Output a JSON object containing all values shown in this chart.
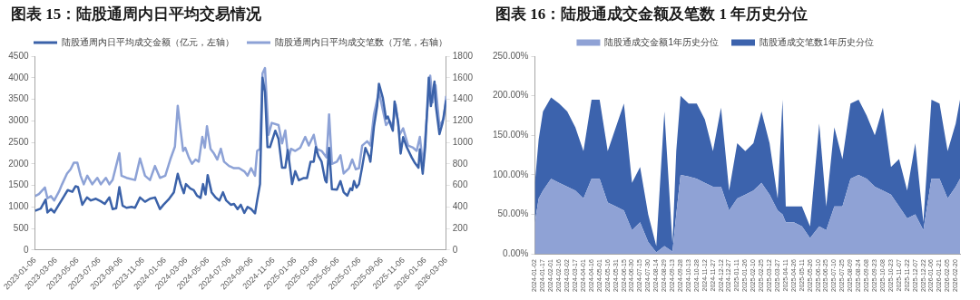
{
  "chart_data": [
    {
      "type": "line",
      "title": "图表 15：陆股通周内日平均交易情况",
      "legend": "top",
      "marker": "none",
      "xlim": [
        "2023-01-06",
        "2026-03-06"
      ],
      "xticks": [
        "2023-01-06",
        "2023-03-06",
        "2023-05-06",
        "2023-07-06",
        "2023-09-06",
        "2023-11-06",
        "2024-01-06",
        "2024-03-06",
        "2024-05-06",
        "2024-07-06",
        "2024-09-06",
        "2024-11-06",
        "2025-01-06",
        "2025-03-06",
        "2025-05-06",
        "2025-07-06",
        "2025-09-06",
        "2025-11-06",
        "2026-01-06",
        "2026-03-06"
      ],
      "ylim": [
        0,
        4500
      ],
      "yticks": [
        0,
        500,
        1000,
        1500,
        2000,
        2500,
        3000,
        3500,
        4000,
        4500
      ],
      "y2lim": [
        0,
        1800
      ],
      "y2ticks": [
        0,
        200,
        400,
        600,
        800,
        1000,
        1200,
        1400,
        1600,
        1800
      ],
      "series": [
        {
          "name": "陆股通周内日平均成交金额（亿元，左轴）",
          "color": "#3b62a9",
          "axis": "y",
          "x": [
            "2023-01-06",
            "2023-01-22",
            "2023-02-05",
            "2023-02-10",
            "2023-02-20",
            "2023-03-01",
            "2023-03-14",
            "2023-03-28",
            "2023-04-08",
            "2023-04-21",
            "2023-04-30",
            "2023-05-07",
            "2023-05-19",
            "2023-06-01",
            "2023-06-12",
            "2023-06-26",
            "2023-07-10",
            "2023-07-21",
            "2023-08-03",
            "2023-08-12",
            "2023-08-22",
            "2023-08-31",
            "2023-09-09",
            "2023-09-20",
            "2023-10-04",
            "2023-10-14",
            "2023-10-28",
            "2023-11-11",
            "2023-11-25",
            "2023-12-09",
            "2023-12-23",
            "2024-01-02",
            "2024-01-16",
            "2024-01-31",
            "2024-02-11",
            "2024-02-19",
            "2024-02-28",
            "2024-03-05",
            "2024-03-17",
            "2024-03-27",
            "2024-04-05",
            "2024-04-15",
            "2024-04-22",
            "2024-04-29",
            "2024-05-05",
            "2024-05-16",
            "2024-05-27",
            "2024-06-07",
            "2024-06-17",
            "2024-06-26",
            "2024-07-09",
            "2024-07-18",
            "2024-07-28",
            "2024-08-06",
            "2024-08-16",
            "2024-08-25",
            "2024-09-04",
            "2024-09-15",
            "2024-09-21",
            "2024-09-29",
            "2024-10-06",
            "2024-10-13",
            "2024-10-20",
            "2024-10-27",
            "2024-11-11",
            "2024-11-20",
            "2024-11-30",
            "2024-12-09",
            "2024-12-16",
            "2024-12-24",
            "2024-12-28",
            "2025-01-06",
            "2025-01-16",
            "2025-01-30",
            "2025-02-08",
            "2025-02-18",
            "2025-02-27",
            "2025-03-05",
            "2025-03-12",
            "2025-03-21",
            "2025-03-31",
            "2025-04-04",
            "2025-04-11",
            "2025-04-19",
            "2025-05-03",
            "2025-05-13",
            "2025-05-22",
            "2025-06-01",
            "2025-06-10",
            "2025-06-15",
            "2025-06-20",
            "2025-06-27",
            "2025-07-04",
            "2025-07-13",
            "2025-07-22",
            "2025-08-01",
            "2025-08-05",
            "2025-08-15",
            "2025-08-24",
            "2025-08-29",
            "2025-09-09",
            "2025-09-18",
            "2025-09-23",
            "2025-10-01",
            "2025-10-07",
            "2025-10-12",
            "2025-10-22",
            "2025-10-29",
            "2025-11-05",
            "2025-11-15",
            "2025-11-29",
            "2025-12-08",
            "2025-12-18",
            "2025-12-22",
            "2025-12-30",
            "2026-01-06",
            "2026-01-16",
            "2026-01-22",
            "2026-02-01",
            "2026-02-05",
            "2026-02-15",
            "2026-02-24",
            "2026-03-06"
          ],
          "values": [
            910,
            960,
            1170,
            870,
            950,
            870,
            1050,
            1240,
            1390,
            1350,
            1480,
            1460,
            1050,
            1220,
            1150,
            1190,
            1130,
            1070,
            1220,
            950,
            970,
            1460,
            1030,
            980,
            1000,
            980,
            1220,
            1120,
            1190,
            1220,
            950,
            1050,
            1170,
            1340,
            1770,
            1530,
            1320,
            1530,
            1430,
            1390,
            1260,
            1210,
            1530,
            1290,
            1740,
            1340,
            1220,
            1150,
            1340,
            1150,
            1050,
            1070,
            950,
            1050,
            860,
            1000,
            950,
            850,
            1150,
            1530,
            4000,
            3670,
            2390,
            2390,
            2770,
            2580,
            1910,
            1910,
            2320,
            1810,
            1530,
            1830,
            1620,
            1670,
            1670,
            2050,
            2050,
            2390,
            2180,
            2050,
            1620,
            1570,
            2370,
            1410,
            1400,
            1600,
            1340,
            1260,
            1430,
            1390,
            1600,
            1450,
            1530,
            1930,
            2370,
            2180,
            2050,
            2860,
            3340,
            3860,
            3530,
            3050,
            3100,
            2910,
            2770,
            3450,
            2960,
            2240,
            2620,
            2390,
            2150,
            2020,
            1910,
            2340,
            1770,
            2390,
            4000,
            3340,
            3910,
            3340,
            2690,
            2960,
            3480
          ]
        },
        {
          "name": "陆股通周内日平均成交笔数（万笔，右轴）",
          "color": "#8da2d6",
          "axis": "y2",
          "x": [
            "2023-01-06",
            "2023-01-17",
            "2023-02-03",
            "2023-02-10",
            "2023-02-20",
            "2023-03-01",
            "2023-03-14",
            "2023-03-23",
            "2023-04-06",
            "2023-04-16",
            "2023-04-25",
            "2023-05-05",
            "2023-05-14",
            "2023-05-23",
            "2023-06-02",
            "2023-06-16",
            "2023-06-30",
            "2023-07-10",
            "2023-07-24",
            "2023-08-03",
            "2023-08-12",
            "2023-08-31",
            "2023-09-06",
            "2023-09-20",
            "2023-10-14",
            "2023-10-28",
            "2023-11-11",
            "2023-11-25",
            "2023-12-09",
            "2023-12-23",
            "2024-01-07",
            "2024-01-21",
            "2024-02-03",
            "2024-02-11",
            "2024-02-19",
            "2024-02-26",
            "2024-03-03",
            "2024-03-13",
            "2024-03-22",
            "2024-04-01",
            "2024-04-10",
            "2024-04-20",
            "2024-04-27",
            "2024-05-03",
            "2024-05-13",
            "2024-05-22",
            "2024-06-01",
            "2024-06-11",
            "2024-06-20",
            "2024-07-04",
            "2024-07-18",
            "2024-08-01",
            "2024-08-16",
            "2024-08-25",
            "2024-09-04",
            "2024-09-15",
            "2024-09-21",
            "2024-09-29",
            "2024-10-06",
            "2024-10-13",
            "2024-10-23",
            "2024-11-01",
            "2024-11-20",
            "2024-11-30",
            "2024-12-09",
            "2024-12-18",
            "2024-12-25",
            "2025-01-06",
            "2025-01-20",
            "2025-02-03",
            "2025-02-13",
            "2025-02-27",
            "2025-03-07",
            "2025-03-21",
            "2025-04-04",
            "2025-04-11",
            "2025-04-19",
            "2025-05-03",
            "2025-05-13",
            "2025-05-22",
            "2025-06-06",
            "2025-06-15",
            "2025-06-25",
            "2025-07-04",
            "2025-07-13",
            "2025-07-27",
            "2025-08-05",
            "2025-08-15",
            "2025-08-29",
            "2025-09-09",
            "2025-09-18",
            "2025-09-28",
            "2025-10-07",
            "2025-10-15",
            "2025-10-26",
            "2025-11-05",
            "2025-11-19",
            "2025-12-03",
            "2025-12-13",
            "2025-12-22",
            "2025-12-31",
            "2026-01-11",
            "2026-01-20",
            "2026-01-27",
            "2026-02-04",
            "2026-02-15",
            "2026-02-27",
            "2026-03-06"
          ],
          "values": [
            500,
            520,
            580,
            480,
            500,
            460,
            540,
            610,
            710,
            750,
            810,
            810,
            690,
            610,
            690,
            610,
            670,
            610,
            670,
            610,
            650,
            900,
            690,
            670,
            650,
            850,
            690,
            650,
            780,
            670,
            690,
            840,
            960,
            1340,
            1110,
            920,
            950,
            860,
            800,
            840,
            820,
            1050,
            950,
            1150,
            940,
            900,
            840,
            940,
            820,
            780,
            760,
            760,
            730,
            690,
            760,
            690,
            920,
            940,
            1640,
            1690,
            1070,
            1180,
            1160,
            990,
            1110,
            840,
            940,
            920,
            950,
            1050,
            970,
            1070,
            940,
            920,
            860,
            1260,
            800,
            820,
            880,
            710,
            760,
            840,
            750,
            760,
            970,
            1010,
            970,
            1260,
            1470,
            1300,
            1160,
            1200,
            1150,
            1350,
            1070,
            1130,
            970,
            950,
            920,
            1050,
            780,
            1260,
            1620,
            1370,
            1530,
            1150,
            1220,
            1430
          ]
        }
      ]
    },
    {
      "type": "area",
      "stacked": true,
      "title": "图表 16：陆股通成交金额及笔数 1 年历史分位",
      "legend": "top",
      "marker": "none",
      "xlim": [
        "2024-01-02",
        "2026-02-28"
      ],
      "xticks": [
        "2024-01-02",
        "2024-01-17",
        "2024-02-01",
        "2024-02-16",
        "2024-03-02",
        "2024-03-17",
        "2024-04-01",
        "2024-04-16",
        "2024-05-01",
        "2024-05-16",
        "2024-05-31",
        "2024-06-15",
        "2024-06-30",
        "2024-07-15",
        "2024-07-30",
        "2024-08-14",
        "2024-08-29",
        "2024-09-13",
        "2024-09-28",
        "2024-10-13",
        "2024-10-28",
        "2024-11-12",
        "2024-11-27",
        "2024-12-12",
        "2024-12-27",
        "2025-01-11",
        "2025-01-26",
        "2025-02-10",
        "2025-02-25",
        "2025-03-12",
        "2025-03-27",
        "2025-04-11",
        "2025-04-26",
        "2025-05-11",
        "2025-05-26",
        "2025-06-10",
        "2025-06-25",
        "2025-07-10",
        "2025-07-25",
        "2025-08-09",
        "2025-08-24",
        "2025-09-08",
        "2025-09-23",
        "2025-10-08",
        "2025-10-23",
        "2025-11-07",
        "2025-11-22",
        "2025-12-07",
        "2025-12-22",
        "2026-01-06",
        "2026-01-21",
        "2026-02-05",
        "2026-02-20"
      ],
      "ylim": [
        0,
        250
      ],
      "yticks": [
        {
          "value": 0,
          "label": "0.00%"
        },
        {
          "value": 50,
          "label": "50.00%"
        },
        {
          "value": 100,
          "label": "100.00%"
        },
        {
          "value": 150,
          "label": "150.00%"
        },
        {
          "value": 200,
          "label": "200.00%"
        },
        {
          "value": 250,
          "label": "250.00%"
        }
      ],
      "x": [
        "2024-01-02",
        "2024-01-09",
        "2024-01-17",
        "2024-02-01",
        "2024-02-16",
        "2024-03-02",
        "2024-03-17",
        "2024-04-01",
        "2024-04-16",
        "2024-05-01",
        "2024-05-16",
        "2024-05-31",
        "2024-06-15",
        "2024-06-30",
        "2024-07-15",
        "2024-07-30",
        "2024-08-14",
        "2024-08-29",
        "2024-09-13",
        "2024-09-20",
        "2024-09-28",
        "2024-10-13",
        "2024-10-28",
        "2024-11-12",
        "2024-11-27",
        "2024-12-12",
        "2024-12-27",
        "2025-01-11",
        "2025-01-26",
        "2025-02-10",
        "2025-02-25",
        "2025-03-12",
        "2025-03-27",
        "2025-04-05",
        "2025-04-11",
        "2025-04-26",
        "2025-05-11",
        "2025-05-26",
        "2025-06-12",
        "2025-06-25",
        "2025-07-10",
        "2025-07-25",
        "2025-08-09",
        "2025-08-24",
        "2025-09-08",
        "2025-09-23",
        "2025-10-08",
        "2025-10-23",
        "2025-11-07",
        "2025-11-22",
        "2025-12-07",
        "2025-12-22",
        "2026-01-06",
        "2026-01-21",
        "2026-02-05",
        "2026-02-20",
        "2026-02-28"
      ],
      "series": [
        {
          "name": "陆股通成交金额1年历史分位",
          "color": "#8fa2d5",
          "values": [
            40,
            70,
            80,
            95,
            90,
            85,
            80,
            70,
            95,
            95,
            65,
            60,
            55,
            30,
            40,
            15,
            2,
            10,
            3,
            50,
            100,
            98,
            95,
            90,
            85,
            85,
            55,
            70,
            75,
            80,
            90,
            75,
            55,
            50,
            40,
            40,
            35,
            20,
            35,
            30,
            60,
            60,
            95,
            100,
            95,
            85,
            80,
            75,
            60,
            45,
            50,
            30,
            95,
            95,
            70,
            85,
            95
          ]
        },
        {
          "name": "陆股通成交笔数1年历史分位",
          "color": "#3c63ad",
          "values": [
            50,
            75,
            100,
            103,
            100,
            95,
            80,
            60,
            100,
            100,
            65,
            100,
            135,
            60,
            70,
            35,
            8,
            170,
            10,
            80,
            100,
            92,
            95,
            80,
            45,
            100,
            25,
            70,
            55,
            60,
            90,
            65,
            15,
            145,
            20,
            20,
            25,
            15,
            130,
            30,
            100,
            60,
            95,
            95,
            80,
            65,
            105,
            35,
            60,
            35,
            90,
            10,
            100,
            95,
            60,
            80,
            100
          ]
        }
      ]
    }
  ]
}
